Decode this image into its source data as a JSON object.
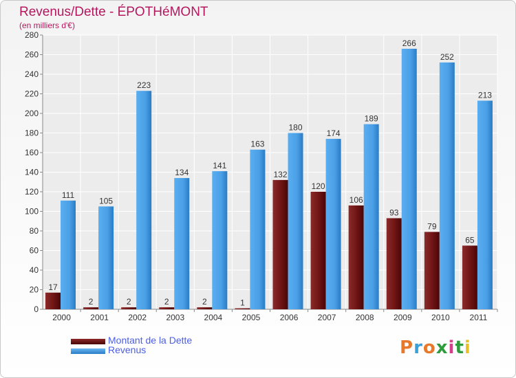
{
  "chart_data": {
    "type": "bar",
    "title": "Revenus/Dette - ÉPOTHéMONT",
    "subtitle": "(en milliers d'€)",
    "categories": [
      "2000",
      "2001",
      "2002",
      "2003",
      "2004",
      "2005",
      "2006",
      "2007",
      "2008",
      "2009",
      "2010",
      "2011"
    ],
    "series": [
      {
        "name": "Montant de la Dette",
        "color": "#7a1a1a",
        "values": [
          17,
          2,
          2,
          2,
          2,
          1,
          132,
          120,
          106,
          93,
          79,
          65
        ]
      },
      {
        "name": "Revenus",
        "color": "#4a9fe6",
        "values": [
          111,
          105,
          223,
          134,
          141,
          163,
          180,
          174,
          189,
          266,
          252,
          213
        ]
      }
    ],
    "ylim": [
      0,
      280
    ],
    "yticks": [
      0,
      20,
      40,
      60,
      80,
      100,
      120,
      140,
      160,
      180,
      200,
      220,
      240,
      260,
      280
    ],
    "grid": true,
    "legend_position": "bottom-left"
  },
  "legend": {
    "debt_label": "Montant de la Dette",
    "revenue_label": "Revenus"
  },
  "logo": {
    "text": "Proxiti",
    "colors": [
      "#e8792a",
      "#3aa0d8",
      "#e8792a",
      "#2e9c3c",
      "#d63f8a",
      "#2e9c3c",
      "#e8c12a"
    ]
  }
}
